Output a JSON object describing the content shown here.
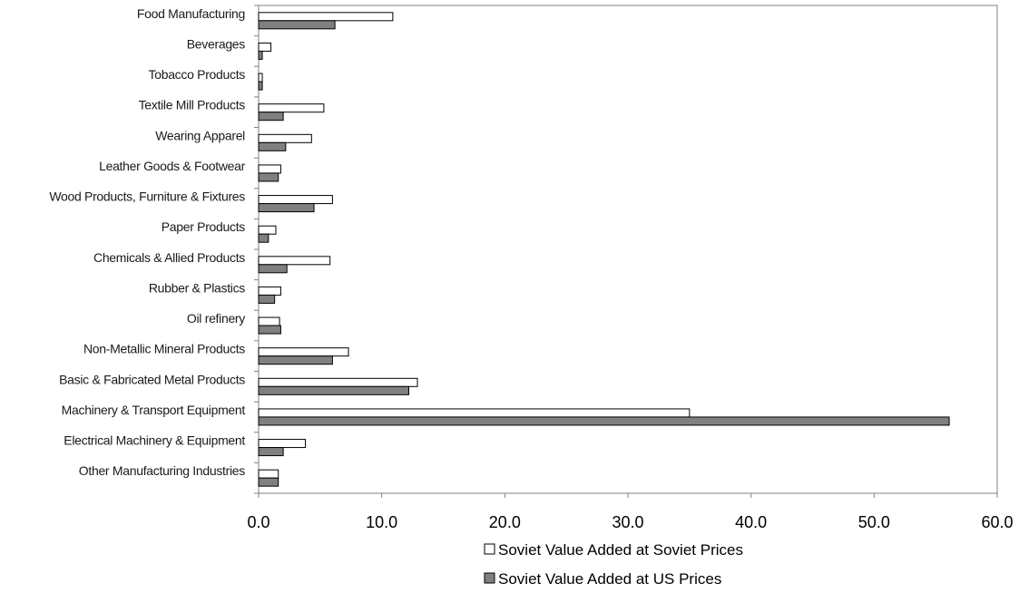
{
  "chart_data": {
    "type": "bar",
    "orientation": "horizontal",
    "categories": [
      "Food Manufacturing",
      "Beverages",
      "Tobacco Products",
      "Textile Mill Products",
      "Wearing Apparel",
      "Leather Goods & Footwear",
      "Wood Products, Furniture & Fixtures",
      "Paper Products",
      "Chemicals & Allied Products",
      "Rubber & Plastics",
      "Oil refinery",
      "Non-Metallic Mineral Products",
      "Basic & Fabricated Metal Products",
      "Machinery & Transport Equipment",
      "Electrical Machinery & Equipment",
      "Other Manufacturing Industries"
    ],
    "series": [
      {
        "name": "Soviet Value Added at Soviet Prices",
        "color": "#ffffff",
        "values": [
          10.9,
          1.0,
          0.3,
          5.3,
          4.3,
          1.8,
          6.0,
          1.4,
          5.8,
          1.8,
          1.7,
          7.3,
          12.9,
          35.0,
          3.8,
          1.6
        ]
      },
      {
        "name": "Soviet Value Added at US Prices",
        "color": "#808080",
        "values": [
          6.2,
          0.3,
          0.3,
          2.0,
          2.2,
          1.6,
          4.5,
          0.8,
          2.3,
          1.3,
          1.8,
          6.0,
          12.2,
          56.1,
          2.0,
          1.6
        ]
      }
    ],
    "xlim": [
      0,
      60
    ],
    "xticks": [
      "0.0",
      "10.0",
      "20.0",
      "30.0",
      "40.0",
      "50.0",
      "60.0"
    ],
    "xlabel": "",
    "ylabel": "",
    "title": "",
    "grid": false,
    "legend_position": "bottom"
  }
}
